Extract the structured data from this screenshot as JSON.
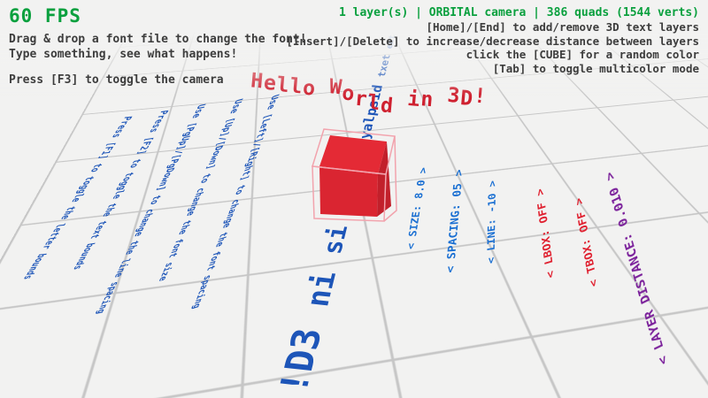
{
  "hud": {
    "fps": "60 FPS",
    "left_lines": [
      "Drag & drop a font file to change the font!",
      "Type something, see what happens!",
      "Press [F3] to toggle the camera"
    ],
    "status": "1 layer(s) | ORBITAL camera |  386 quads (1544 verts)",
    "right_lines": [
      "[Home]/[End] to add/remove 3D text layers",
      "[Insert]/[Delete] to increase/decrease distance between layers",
      "click the [CUBE] for a random color",
      "[Tab] to toggle multicolor mode"
    ]
  },
  "scene": {
    "title3d": "Hello World in 3D!",
    "mirrored_text": "the text displayed here is in 3D!",
    "ground_instructions": [
      "Press [F1] to toggle the letter bounds",
      "Press [F2] to toggle the text bounds",
      "Use [PgUp]/[PgDown] to change the line spacing",
      "Use [Up]/[Down] to change the font size",
      "Use [Left]/[Right] to change the font spacing"
    ],
    "params": [
      {
        "label": "< SIZE: 8.0 >",
        "color": "#1a6fd2"
      },
      {
        "label": "< SPACING: 05 >",
        "color": "#1a6fd2"
      },
      {
        "label": "< LINE: -10 >",
        "color": "#1a6fd2"
      },
      {
        "label": "< LBOX: OFF >",
        "color": "#e02231"
      },
      {
        "label": "< TBOX: OFF >",
        "color": "#e02231"
      },
      {
        "label": "< LAYER DISTANCE: 0.010 >",
        "color": "#7a1f9a"
      }
    ],
    "cube": {
      "top": "#e42a35",
      "front": "#da2531",
      "right": "#c2202b",
      "wire": "#f2a3ad"
    }
  },
  "colors": {
    "background": "#f2f2f1",
    "grid": "#c6c6c6",
    "green": "#0aa03e",
    "gray": "#3d3d3d",
    "blue_ground": "#1d55b8",
    "blue_param": "#1a6fd2",
    "red": "#cf2130",
    "purple": "#7a1f9a"
  }
}
